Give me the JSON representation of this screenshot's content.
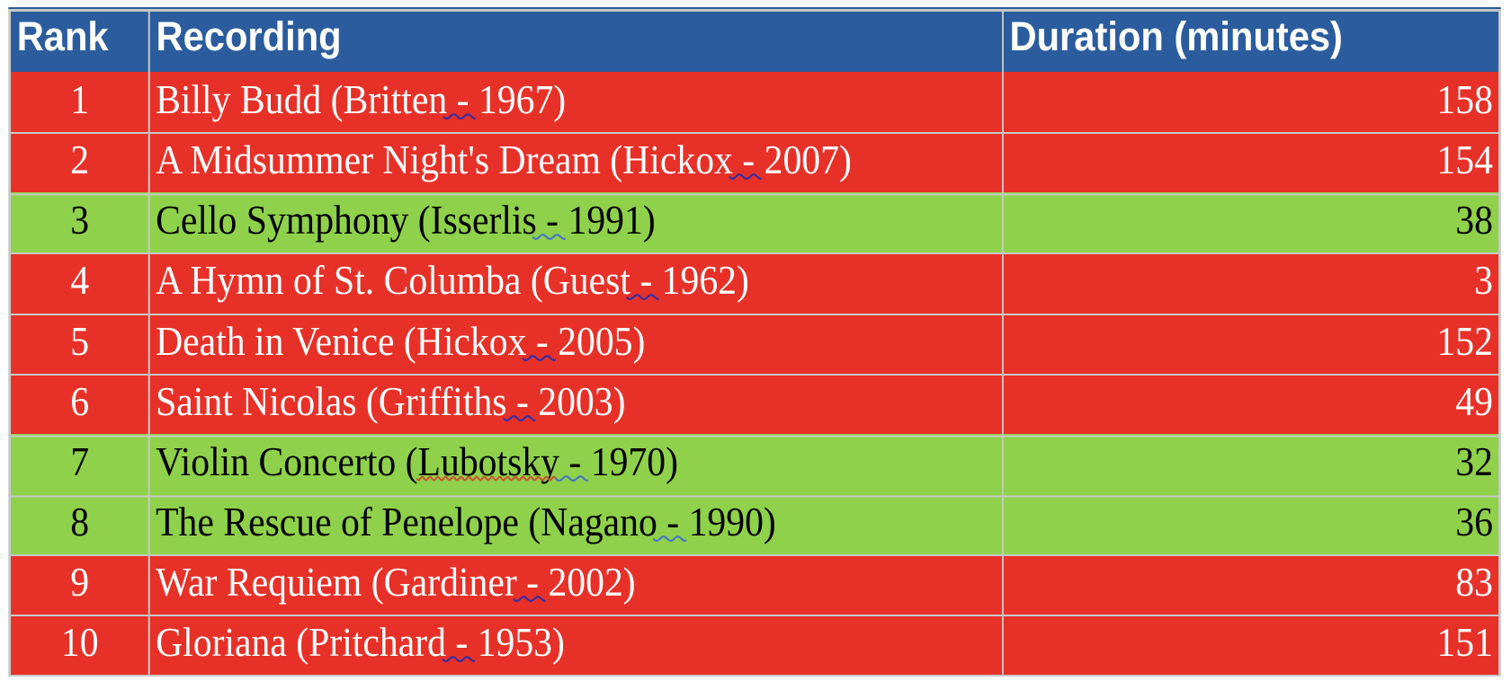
{
  "table": {
    "columns": [
      {
        "label": "Rank"
      },
      {
        "label": "Recording"
      },
      {
        "label": "Duration (minutes)"
      }
    ],
    "rows": [
      {
        "rank": "1",
        "pre": "Billy Budd (Britten",
        "sp": "",
        "dash": " - ",
        "post": "1967)",
        "duration": "158",
        "highlight": "red"
      },
      {
        "rank": "2",
        "pre": "A Midsummer Night's Dream (Hickox",
        "sp": "",
        "dash": " - ",
        "post": "2007)",
        "duration": "154",
        "highlight": "red"
      },
      {
        "rank": "3",
        "pre": "Cello Symphony (Isserlis",
        "sp": "",
        "dash": " - ",
        "post": "1991)",
        "duration": "38",
        "highlight": "green"
      },
      {
        "rank": "4",
        "pre": "A Hymn of St. Columba (Guest",
        "sp": "",
        "dash": " - ",
        "post": "1962)",
        "duration": "3",
        "highlight": "red"
      },
      {
        "rank": "5",
        "pre": "Death in Venice (Hickox",
        "sp": "",
        "dash": " - ",
        "post": "2005)",
        "duration": "152",
        "highlight": "red"
      },
      {
        "rank": "6",
        "pre": "Saint Nicolas (Griffiths",
        "sp": "",
        "dash": " - ",
        "post": "2003)",
        "duration": "49",
        "highlight": "red"
      },
      {
        "rank": "7",
        "pre": "Violin Concerto (",
        "sp": "Lubotsky",
        "dash": " - ",
        "post": "1970)",
        "duration": "32",
        "highlight": "green"
      },
      {
        "rank": "8",
        "pre": "The Rescue of Penelope (Nagano",
        "sp": "",
        "dash": " - ",
        "post": "1990)",
        "duration": "36",
        "highlight": "green"
      },
      {
        "rank": "9",
        "pre": "War Requiem (Gardiner",
        "sp": "",
        "dash": " - ",
        "post": "2002)",
        "duration": "83",
        "highlight": "red"
      },
      {
        "rank": "10",
        "pre": "Gloriana (Pritchard",
        "sp": "",
        "dash": " - ",
        "post": "1953)",
        "duration": "151",
        "highlight": "red"
      }
    ]
  },
  "theme": {
    "header_bg": "#2b5c9d",
    "top_line": "#2b5c9d",
    "row_red": "#e73128",
    "row_green": "#8fd14a",
    "grid": "#c6c9c7",
    "page_bg": "#ffffff",
    "header_text": "#ffffff",
    "red_text": "#ffffff",
    "green_text": "#000000",
    "squiggle_grammar_on_red": "#362da4",
    "squiggle_grammar_on_green": "#4a73c4",
    "squiggle_spelling": "#c8552e"
  }
}
